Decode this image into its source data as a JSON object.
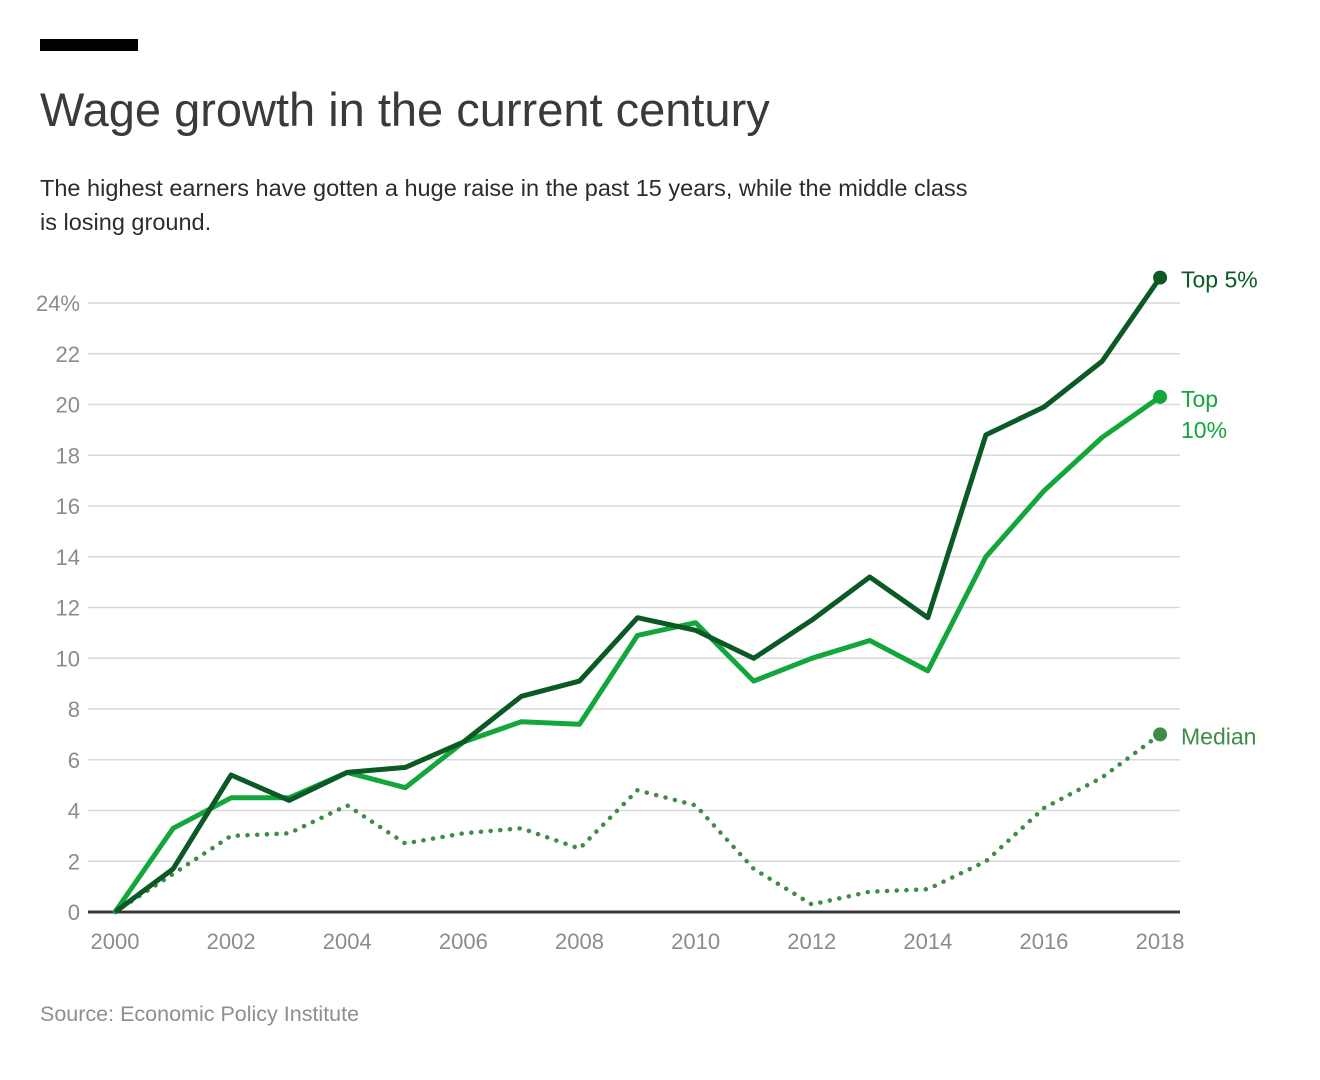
{
  "header": {
    "kicker_bar_color": "#000000",
    "title": "Wage growth in the current century",
    "subtitle_lines": [
      "The highest earners have gotten a huge raise in the past 15 years, while the middle class",
      "is losing ground."
    ]
  },
  "footer": {
    "source": "Source: Economic Policy Institute"
  },
  "chart_data": {
    "type": "line",
    "title": "Wage growth in the current century",
    "xlabel": "",
    "ylabel": "",
    "ylim": [
      0,
      25
    ],
    "grid": true,
    "legend_position": "right-of-line-ends",
    "grid_color": "#d9d9d9",
    "axis_color": "#3a3a3a",
    "tick_label_color": "#8c8c8c",
    "x": [
      2000,
      2001,
      2002,
      2003,
      2004,
      2005,
      2006,
      2007,
      2008,
      2009,
      2010,
      2011,
      2012,
      2013,
      2014,
      2015,
      2016,
      2017,
      2018
    ],
    "series": [
      {
        "name": "Median",
        "label_lines": [
          "Median"
        ],
        "color": "#3e8c46",
        "style": "dotted",
        "values": [
          0,
          1.5,
          3.0,
          3.1,
          4.2,
          2.7,
          3.1,
          3.3,
          2.5,
          4.8,
          4.2,
          1.7,
          0.3,
          0.8,
          0.9,
          2.0,
          4.1,
          5.3,
          7.0
        ]
      },
      {
        "name": "Top 10%",
        "label_lines": [
          "Top",
          "10%"
        ],
        "color": "#12a63b",
        "style": "solid",
        "values": [
          0,
          3.3,
          4.5,
          4.5,
          5.5,
          4.9,
          6.7,
          7.5,
          7.4,
          10.9,
          11.4,
          9.1,
          10.0,
          10.7,
          9.5,
          14.0,
          16.6,
          18.7,
          20.3
        ]
      },
      {
        "name": "Top 5%",
        "label_lines": [
          "Top 5%"
        ],
        "color": "#0b5a26",
        "style": "solid",
        "values": [
          0,
          1.7,
          5.4,
          4.4,
          5.5,
          5.7,
          6.7,
          8.5,
          9.1,
          11.6,
          11.1,
          10.0,
          11.5,
          13.2,
          11.6,
          18.8,
          19.9,
          21.7,
          25.0
        ]
      }
    ],
    "xticks": [
      {
        "v": 2000,
        "label": "2000"
      },
      {
        "v": 2002,
        "label": "2002"
      },
      {
        "v": 2004,
        "label": "2004"
      },
      {
        "v": 2006,
        "label": "2006"
      },
      {
        "v": 2008,
        "label": "2008"
      },
      {
        "v": 2010,
        "label": "2010"
      },
      {
        "v": 2012,
        "label": "2012"
      },
      {
        "v": 2014,
        "label": "2014"
      },
      {
        "v": 2016,
        "label": "2016"
      },
      {
        "v": 2018,
        "label": "2018"
      }
    ],
    "yticks": [
      {
        "v": 24,
        "label": "24%"
      },
      {
        "v": 22,
        "label": "22"
      },
      {
        "v": 20,
        "label": "20"
      },
      {
        "v": 18,
        "label": "18"
      },
      {
        "v": 16,
        "label": "16"
      },
      {
        "v": 14,
        "label": "14"
      },
      {
        "v": 12,
        "label": "12"
      },
      {
        "v": 10,
        "label": "10"
      },
      {
        "v": 8,
        "label": "8"
      },
      {
        "v": 6,
        "label": "6"
      },
      {
        "v": 4,
        "label": "4"
      },
      {
        "v": 2,
        "label": "2"
      },
      {
        "v": 0,
        "label": "0"
      }
    ]
  }
}
